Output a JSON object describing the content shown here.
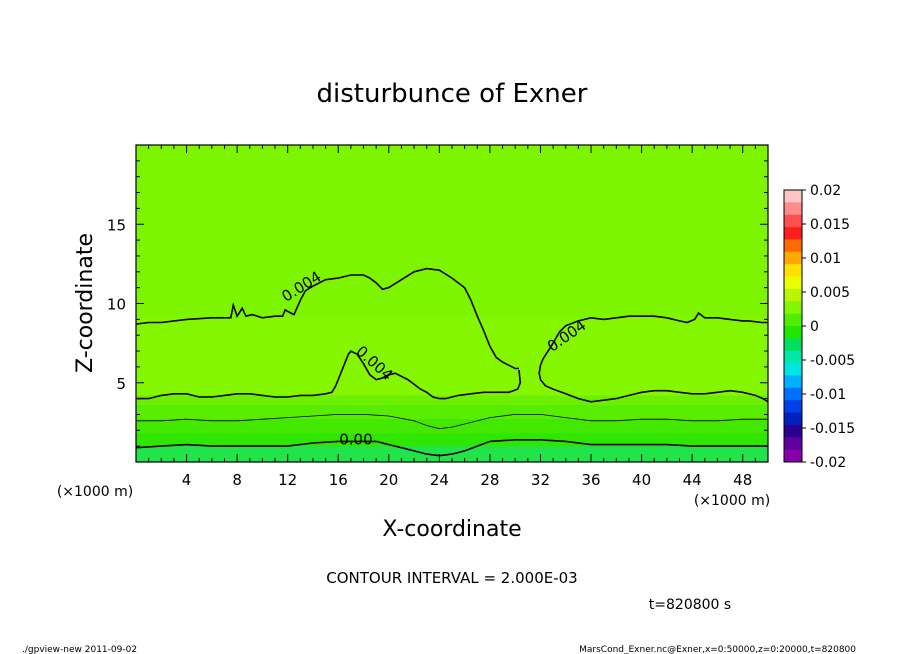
{
  "chart_data": {
    "type": "contour",
    "title": "disturbunce of Exner",
    "xlabel": "X-coordinate",
    "ylabel": "Z-coordinate",
    "x_unit_label": "(×1000 m)",
    "y_unit_label": "(×1000 m)",
    "xlim": [
      0,
      50
    ],
    "ylim": [
      0,
      20
    ],
    "x_ticks": [
      4,
      8,
      12,
      16,
      20,
      24,
      28,
      32,
      36,
      40,
      44,
      48
    ],
    "y_ticks": [
      5,
      10,
      15
    ],
    "contour_interval_text": "CONTOUR INTERVAL = 2.000E-03",
    "contour_labels": [
      {
        "text": "0.004",
        "x": 13.3,
        "z": 10.8,
        "angle": -32
      },
      {
        "text": "0.004",
        "x": 18.6,
        "z": 6.0,
        "angle": 42
      },
      {
        "text": "0.004",
        "x": 34.3,
        "z": 7.7,
        "angle": -35
      },
      {
        "text": "0.00",
        "x": 17.4,
        "z": 1.1,
        "angle": 0
      }
    ],
    "contours": [
      {
        "level": 0.004,
        "x": [
          0,
          1,
          2,
          4,
          6,
          7.5,
          7.7,
          8.0,
          8.4,
          8.7,
          9.2,
          10,
          11,
          11.6,
          11.8,
          12.0,
          12.5,
          13,
          13.4,
          14,
          15,
          16,
          17,
          17.5,
          18,
          18.5,
          19,
          19.5,
          20,
          21,
          22,
          23,
          24,
          25,
          26,
          26.5,
          27,
          27.5,
          28,
          28.5,
          29,
          29.5,
          30,
          30.3
        ],
        "z": [
          8.7,
          8.8,
          8.8,
          9.0,
          9.1,
          9.1,
          9.9,
          9.2,
          9.7,
          9.2,
          9.3,
          9.1,
          9.2,
          9.2,
          9.6,
          9.5,
          9.3,
          10.2,
          10.8,
          11.1,
          11.5,
          11.6,
          11.8,
          11.8,
          11.8,
          11.6,
          11.3,
          10.9,
          11.0,
          11.5,
          12.0,
          12.2,
          12.1,
          11.6,
          11.0,
          10.2,
          9.2,
          8.3,
          7.3,
          6.6,
          6.3,
          6.1,
          5.9,
          5.9
        ]
      },
      {
        "level": 0.004,
        "x": [
          30.3,
          30.4,
          30.2,
          29.5,
          28.5,
          27.5,
          26.5,
          25.5,
          24.5,
          24,
          23.5,
          23,
          22.5,
          22,
          21.5,
          21,
          20.5,
          20,
          19.5,
          19,
          18.5,
          18,
          17.5,
          17,
          16.8,
          16.5,
          16.2,
          15.8,
          15.5,
          15,
          14,
          13,
          12,
          11,
          10,
          9,
          8,
          7,
          6,
          5,
          4,
          3,
          2,
          1,
          0
        ],
        "z": [
          5.8,
          5.0,
          4.6,
          4.4,
          4.4,
          4.4,
          4.3,
          4.2,
          4.0,
          4.0,
          4.1,
          4.4,
          4.6,
          4.9,
          5.2,
          5.4,
          5.6,
          5.5,
          5.3,
          5.2,
          5.5,
          6.2,
          6.8,
          7.0,
          6.8,
          6.2,
          5.6,
          4.8,
          4.4,
          4.3,
          4.2,
          4.2,
          4.1,
          4.1,
          4.2,
          4.3,
          4.3,
          4.2,
          4.1,
          4.1,
          4.3,
          4.3,
          4.2,
          4.0,
          4.0
        ]
      },
      {
        "level": 0.004,
        "x": [
          50,
          49.5,
          48.5,
          48,
          47,
          46,
          45,
          44.5,
          44.2,
          43.6,
          43,
          42,
          41,
          40,
          39,
          38,
          37,
          36,
          35,
          34,
          33.5,
          33,
          32.6,
          32.2,
          32.0,
          31.9,
          32.0,
          32.4,
          33,
          34,
          35,
          35.5,
          36,
          37,
          38,
          39,
          40,
          41,
          42,
          43,
          44,
          45,
          46,
          47,
          48,
          49,
          49.6,
          50
        ],
        "z": [
          8.8,
          8.8,
          8.9,
          8.9,
          9.0,
          9.1,
          9.1,
          9.4,
          9.0,
          8.8,
          8.9,
          9.1,
          9.2,
          9.2,
          9.2,
          9.1,
          9.0,
          9.1,
          8.9,
          8.6,
          8.2,
          7.5,
          7.0,
          6.5,
          6.1,
          5.6,
          5.2,
          4.8,
          4.6,
          4.3,
          4.0,
          3.9,
          3.8,
          3.9,
          4.0,
          4.2,
          4.4,
          4.5,
          4.5,
          4.4,
          4.3,
          4.3,
          4.4,
          4.5,
          4.4,
          4.2,
          4.0,
          3.8
        ]
      },
      {
        "level": 0.002,
        "x": [
          0,
          2,
          4,
          6,
          8,
          10,
          12,
          14,
          16,
          18,
          20,
          22,
          23,
          24,
          25,
          26,
          28,
          30,
          32,
          34,
          36,
          38,
          40,
          42,
          44,
          46,
          48,
          50
        ],
        "z": [
          2.6,
          2.6,
          2.7,
          2.6,
          2.6,
          2.7,
          2.8,
          2.9,
          3.0,
          3.0,
          2.9,
          2.6,
          2.3,
          2.1,
          2.2,
          2.4,
          2.8,
          3.0,
          3.0,
          2.8,
          2.6,
          2.6,
          2.7,
          2.7,
          2.6,
          2.6,
          2.7,
          2.7
        ]
      },
      {
        "level": 0.0,
        "x": [
          0,
          2,
          4,
          6,
          8,
          10,
          12,
          14,
          16,
          17.5,
          19,
          20,
          21,
          22,
          23,
          24,
          25,
          26,
          27,
          28,
          30,
          32,
          34,
          36,
          38,
          40,
          42,
          44,
          46,
          48,
          50
        ],
        "z": [
          0.9,
          1.0,
          1.1,
          1.0,
          1.0,
          1.0,
          1.0,
          1.2,
          1.3,
          1.3,
          1.3,
          1.1,
          0.9,
          0.7,
          0.5,
          0.4,
          0.5,
          0.7,
          1.0,
          1.3,
          1.4,
          1.4,
          1.3,
          1.1,
          1.1,
          1.1,
          1.1,
          1.0,
          1.0,
          1.0,
          1.0
        ]
      }
    ],
    "color_bands": [
      {
        "z_top": 20.0,
        "color": "#7df500"
      },
      {
        "z_top": 9.1,
        "color": "#84f700"
      },
      {
        "z_top": 4.2,
        "color": "#6cf000"
      },
      {
        "z_top": 3.6,
        "color": "#58ec00"
      },
      {
        "z_top": 2.7,
        "color": "#43e800"
      },
      {
        "z_top": 1.8,
        "color": "#2ee600"
      },
      {
        "z_top": 1.0,
        "color": "#22e44a"
      }
    ],
    "colorbar": {
      "labels": [
        "0.02",
        "0.015",
        "0.01",
        "0.005",
        "0",
        "-0.005",
        "-0.01",
        "-0.015",
        "-0.02"
      ],
      "values": [
        0.02,
        0.015,
        0.01,
        0.005,
        0,
        -0.005,
        -0.01,
        -0.015,
        -0.02
      ],
      "colors": [
        "#ffc6c6",
        "#ff8c8c",
        "#ff5050",
        "#ff1e1e",
        "#ff6a00",
        "#ffa800",
        "#ffe000",
        "#e8ff00",
        "#bcf500",
        "#84f700",
        "#50ee00",
        "#20e600",
        "#00e060",
        "#00e8a8",
        "#00e4e4",
        "#00b0ff",
        "#0070ff",
        "#0040e8",
        "#0020c0",
        "#2a0090",
        "#6000a0",
        "#8a00a8"
      ]
    }
  },
  "footer": {
    "time_label": "t=820800  s",
    "left_note": "./gpview-new   2011-09-02",
    "right_note": "MarsCond_Exner.nc@Exner,x=0:50000,z=0:20000,t=820800"
  }
}
